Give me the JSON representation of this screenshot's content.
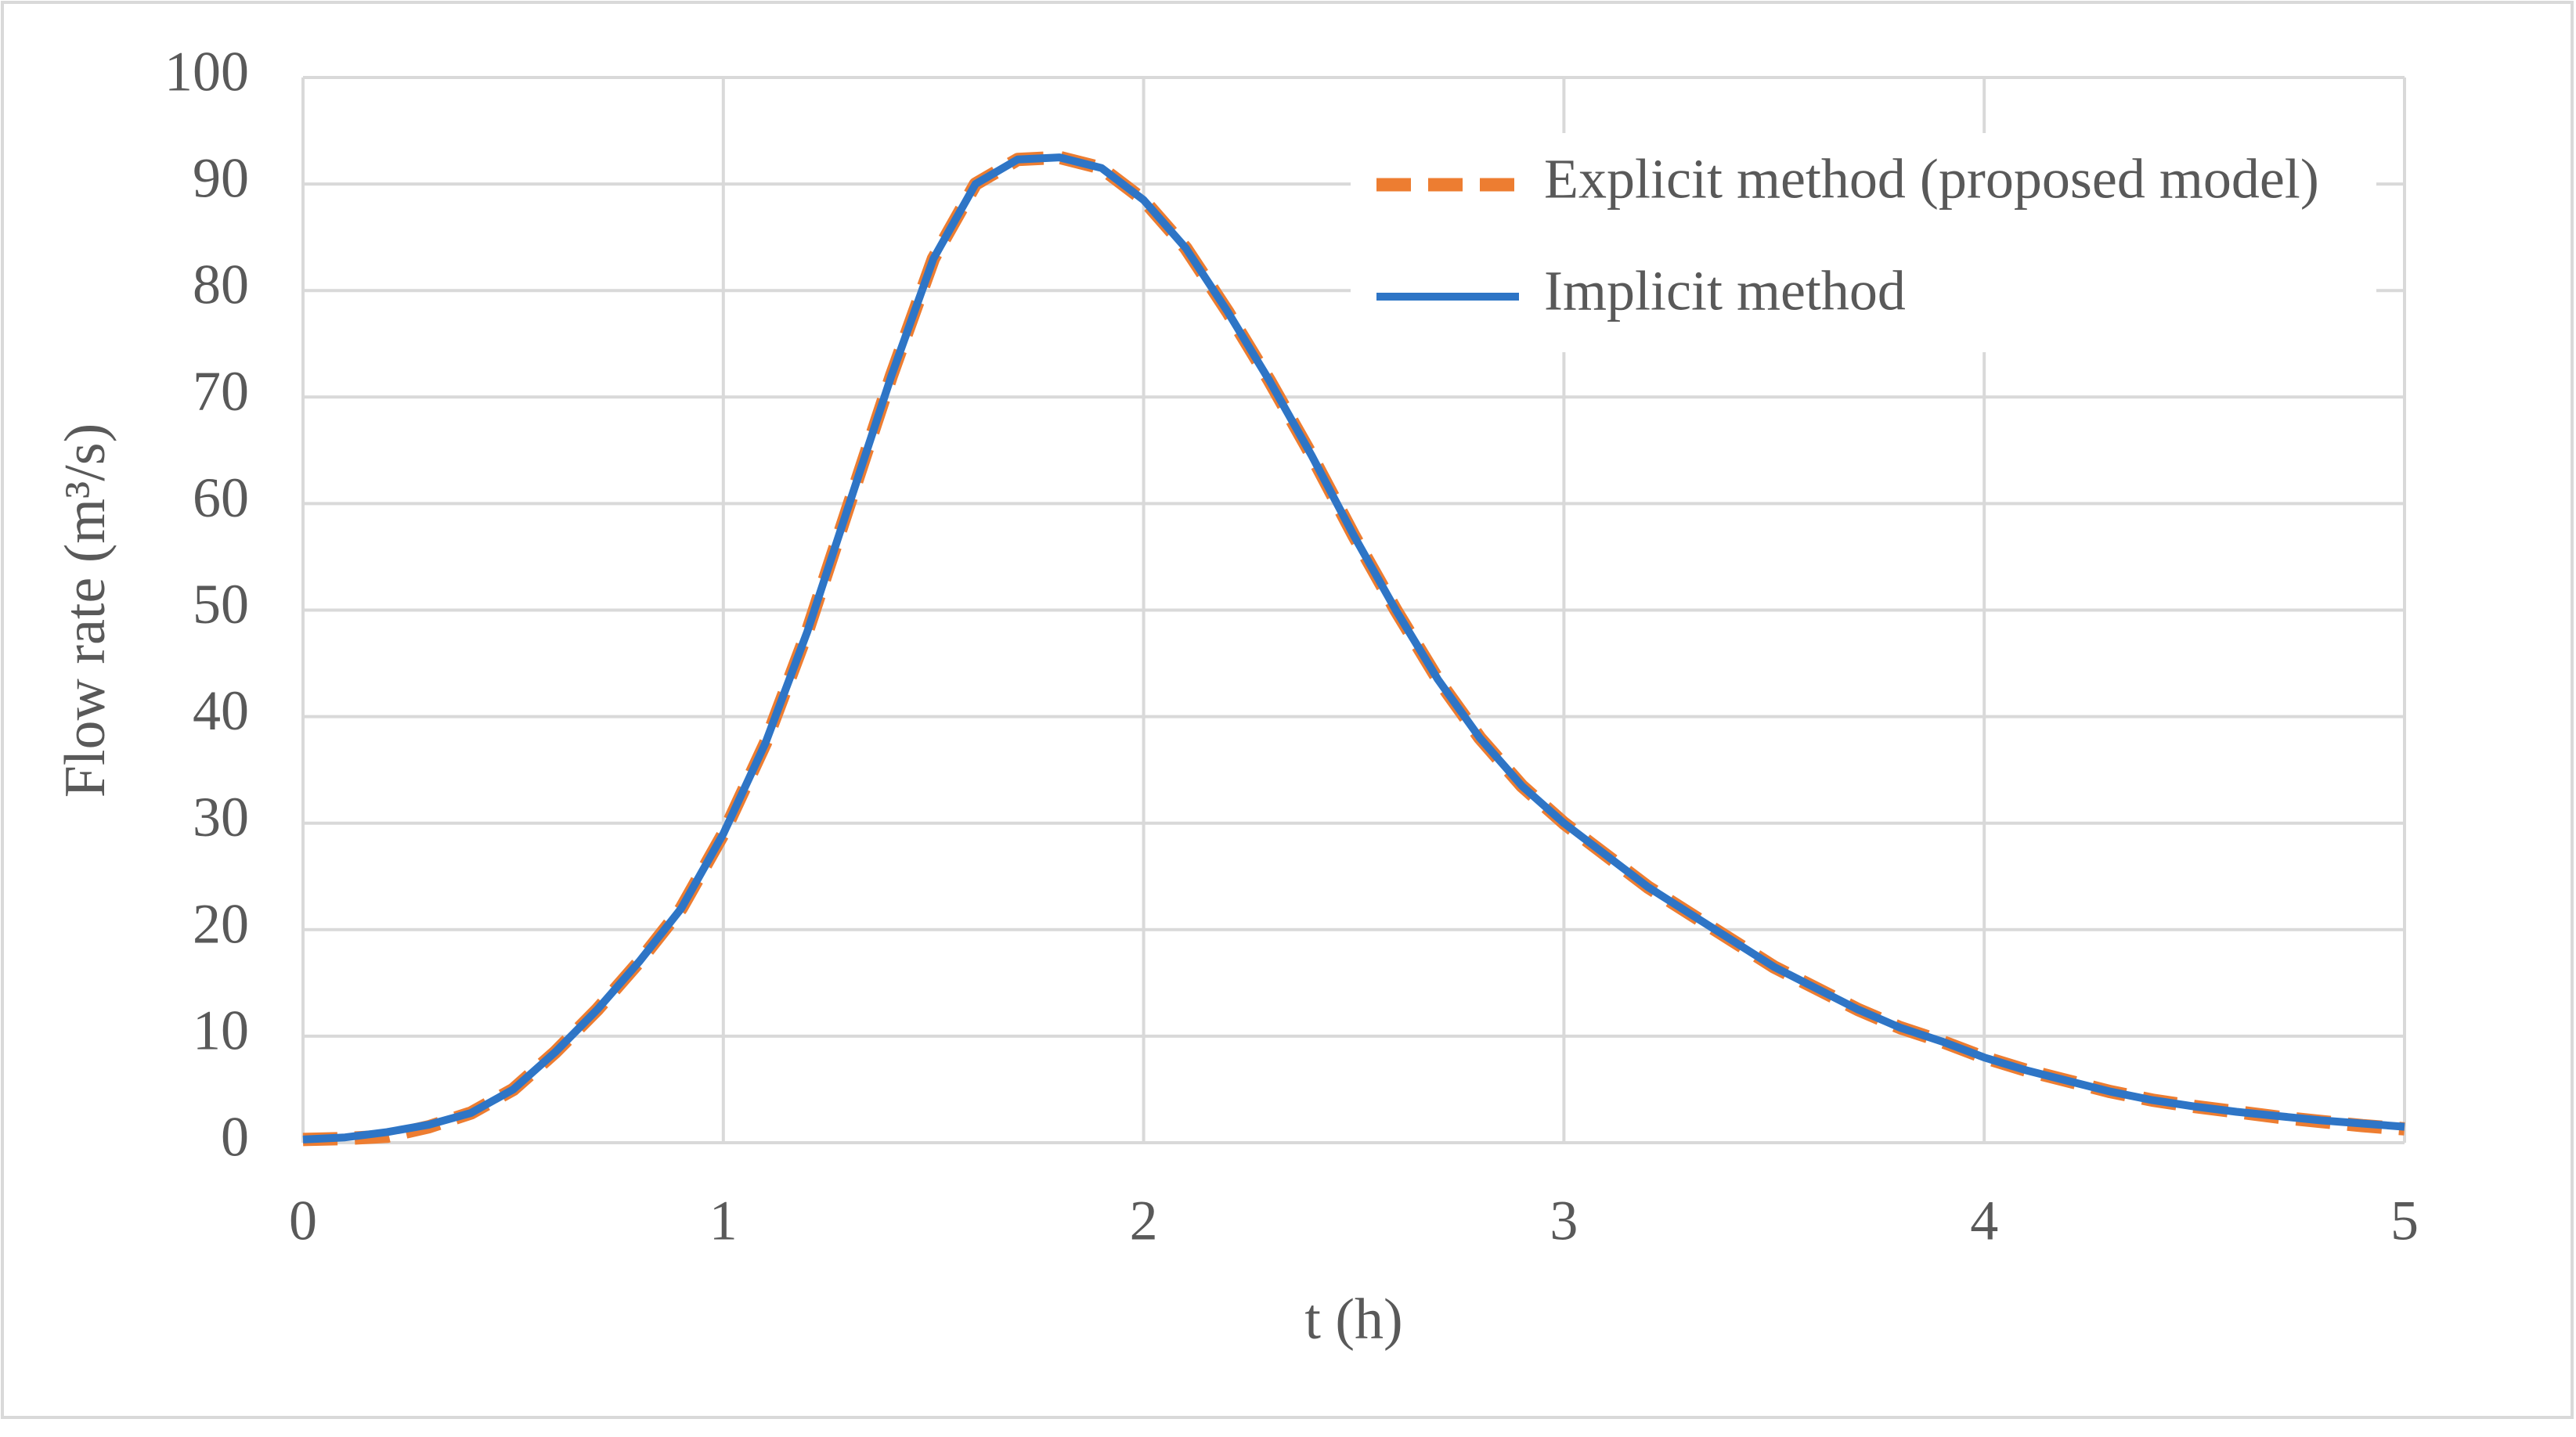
{
  "chart_data": {
    "type": "line",
    "x_label": "t (h)",
    "y_label": "Flow rate (m³/s)",
    "x": [
      0,
      0.1,
      0.2,
      0.3,
      0.4,
      0.5,
      0.6,
      0.7,
      0.8,
      0.9,
      1.0,
      1.1,
      1.2,
      1.3,
      1.4,
      1.5,
      1.6,
      1.7,
      1.8,
      1.9,
      2.0,
      2.1,
      2.2,
      2.3,
      2.4,
      2.5,
      2.6,
      2.7,
      2.8,
      2.9,
      3.0,
      3.1,
      3.2,
      3.3,
      3.4,
      3.5,
      3.6,
      3.7,
      3.8,
      3.9,
      4.0,
      4.1,
      4.2,
      4.3,
      4.4,
      4.5,
      4.6,
      4.7,
      4.8,
      4.9,
      5.0
    ],
    "series": [
      {
        "name": "Explicit method (proposed model)",
        "color": "#ED7D31",
        "line_style": "dashed",
        "values": [
          0.3,
          0.4,
          0.6,
          1.5,
          2.8,
          5,
          8.5,
          12.5,
          17,
          22,
          29,
          37.5,
          48,
          60,
          72,
          83,
          90,
          92.3,
          92.5,
          91.5,
          88.5,
          84,
          78,
          71.5,
          64.5,
          57,
          50,
          43.5,
          38,
          33.5,
          30,
          27,
          24,
          21.5,
          19,
          16.5,
          14.5,
          12.5,
          10.8,
          9.5,
          8,
          6.8,
          5.8,
          4.8,
          4,
          3.4,
          2.9,
          2.4,
          2.0,
          1.6,
          1.3
        ]
      },
      {
        "name": "Implicit method",
        "color": "#2E75C6",
        "line_style": "solid",
        "values": [
          0.3,
          0.5,
          1.0,
          1.7,
          2.8,
          5,
          8.5,
          12.5,
          17,
          22,
          29,
          37.5,
          48,
          60,
          72,
          83,
          90,
          92.3,
          92.5,
          91.5,
          88.5,
          84,
          78,
          71.5,
          64.5,
          57,
          50,
          43.5,
          38,
          33.5,
          30,
          27,
          24,
          21.5,
          19,
          16.5,
          14.5,
          12.5,
          10.8,
          9.5,
          8,
          6.8,
          5.8,
          4.8,
          4,
          3.4,
          2.9,
          2.5,
          2.1,
          1.8,
          1.5
        ]
      }
    ],
    "xlim": [
      0,
      5
    ],
    "xticks": [
      0,
      1,
      2,
      3,
      4,
      5
    ],
    "ylim": [
      0,
      100
    ],
    "yticks": [
      0,
      10,
      20,
      30,
      40,
      50,
      60,
      70,
      80,
      90,
      100
    ],
    "grid": true,
    "legend": "upper right"
  }
}
